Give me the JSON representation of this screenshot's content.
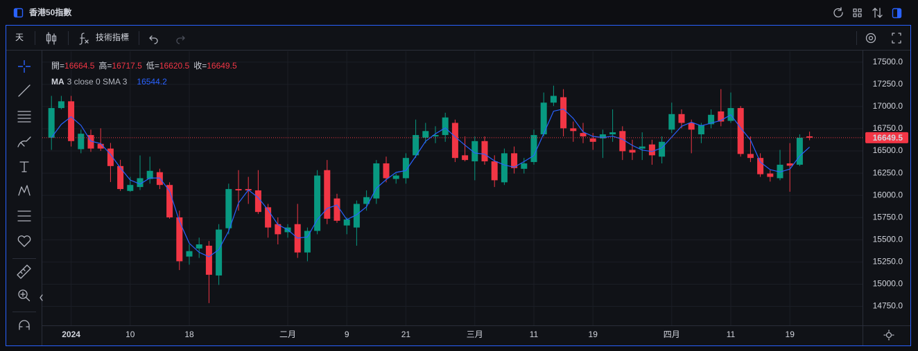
{
  "header": {
    "title": "香港50指數"
  },
  "toolbar": {
    "interval": "天",
    "indicators": "技術指標"
  },
  "chart_data": {
    "type": "candlestick",
    "categories": [
      null,
      null,
      "2024",
      null,
      null,
      null,
      null,
      null,
      "10",
      null,
      null,
      null,
      null,
      null,
      "18",
      null,
      null,
      null,
      null,
      null,
      null,
      null,
      null,
      null,
      "二月",
      null,
      null,
      null,
      null,
      null,
      "9",
      null,
      null,
      null,
      null,
      null,
      "21",
      null,
      null,
      null,
      null,
      null,
      null,
      "三月",
      null,
      null,
      null,
      null,
      null,
      "11",
      null,
      null,
      null,
      null,
      null,
      "19",
      null,
      null,
      null,
      null,
      null,
      null,
      null,
      "四月",
      null,
      null,
      null,
      null,
      null,
      "11",
      null,
      null,
      null,
      null,
      null,
      "19",
      null,
      null
    ],
    "open": [
      16649,
      16983,
      17059,
      16520,
      16679,
      16580,
      16527,
      16330,
      16050,
      16094,
      16185,
      16261,
      16117,
      15752,
      15311,
      15402,
      15433,
      15098,
      15630,
      16071,
      16071,
      16056,
      15866,
      15676,
      15585,
      15676,
      15357,
      15600,
      16284,
      15965,
      15661,
      15638,
      15904,
      15965,
      16360,
      16185,
      16193,
      16451,
      16649,
      16664,
      16679,
      16816,
      16451,
      16383,
      16611,
      16383,
      16147,
      16474,
      16299,
      16375,
      16687,
      17044,
      17105,
      16755,
      16702,
      16641,
      16641,
      16687,
      16724,
      16512,
      16527,
      16573,
      16436,
      16740,
      16915,
      16816,
      16687,
      16801,
      16945,
      16839,
      16983,
      16466,
      16421,
      16246,
      16193,
      16360,
      16345,
      16664.5
    ],
    "high": [
      17120,
      17120,
      17120,
      16740,
      16740,
      16755,
      16590,
      16400,
      16208,
      16450,
      16436,
      16300,
      16147,
      15828,
      15448,
      15524,
      15486,
      15676,
      16132,
      16284,
      16208,
      16284,
      15904,
      15752,
      15676,
      15904,
      15638,
      16284,
      16398,
      16018,
      15752,
      15942,
      16056,
      16398,
      16436,
      16246,
      16474,
      16853,
      16816,
      16778,
      16930,
      16853,
      16664,
      16664,
      16664,
      16451,
      16527,
      16550,
      16421,
      16740,
      17158,
      17235,
      17196,
      16831,
      16816,
      16702,
      16740,
      16968,
      16778,
      16626,
      16710,
      16626,
      16664,
      17044,
      16968,
      16853,
      16816,
      16968,
      17196,
      17158,
      17006,
      16664,
      16474,
      16284,
      16512,
      16588,
      16687,
      16717.5
    ],
    "low": [
      16512,
      16969,
      16550,
      16474,
      16490,
      16500,
      16150,
      16050,
      16040,
      16060,
      16132,
      16071,
      15737,
      15159,
      15220,
      15296,
      14787,
      14992,
      15562,
      15828,
      15904,
      15790,
      15524,
      15448,
      15524,
      15296,
      15258,
      15562,
      15676,
      15691,
      15562,
      15433,
      15828,
      15904,
      16147,
      16132,
      16132,
      16421,
      16588,
      16588,
      16603,
      16375,
      16383,
      16170,
      16345,
      16094,
      16117,
      16246,
      16246,
      16345,
      16664,
      17006,
      16664,
      16603,
      16588,
      16512,
      16421,
      16603,
      16398,
      16398,
      16398,
      16345,
      16360,
      16702,
      16755,
      16474,
      16588,
      16755,
      16778,
      16816,
      16436,
      16375,
      16208,
      16155,
      16170,
      16041,
      16330,
      16620.5
    ],
    "close": [
      16983,
      17059,
      16611,
      16694,
      16527,
      16527,
      16330,
      16071,
      16117,
      16193,
      16276,
      16117,
      15752,
      15258,
      15372,
      15448,
      15106,
      15615,
      16071,
      16056,
      16056,
      15813,
      15638,
      15562,
      15638,
      15357,
      15600,
      16223,
      15737,
      15714,
      15729,
      15904,
      15980,
      16360,
      16193,
      16223,
      16421,
      16679,
      16724,
      16679,
      16877,
      16421,
      16398,
      16611,
      16383,
      16170,
      16474,
      16307,
      16360,
      16679,
      17044,
      17120,
      16755,
      16724,
      16664,
      16603,
      16687,
      16710,
      16497,
      16482,
      16550,
      16451,
      16603,
      16915,
      16816,
      16740,
      16793,
      16907,
      16831,
      16983,
      16466,
      16421,
      16238,
      16208,
      16345,
      16334,
      16649,
      16649.5
    ],
    "up_color": "#089981",
    "down_color": "#f23645",
    "legend_labels": [
      "開=",
      "高=",
      "低=",
      "收="
    ],
    "ma": {
      "name": "MA",
      "params": "3 close 0 SMA 3",
      "color": "#2962ff",
      "values": [
        16650,
        16800,
        16884.3,
        16788,
        16610.7,
        16582.7,
        16461.3,
        16309.3,
        16172.7,
        16127,
        16195.3,
        16195.3,
        16048.3,
        15709,
        15460.7,
        15359.3,
        15308.7,
        15389.7,
        15597.3,
        15914,
        16061,
        15975,
        15835.7,
        15671,
        15612.7,
        15519,
        15531.7,
        15726.7,
        15853.3,
        15891.3,
        15726.7,
        15782.3,
        15871,
        16081.3,
        16177.7,
        16258.7,
        16279,
        16441,
        16608,
        16694,
        16760,
        16659,
        16565.3,
        16476.7,
        16464,
        16388,
        16342.3,
        16317,
        16380.3,
        16448.7,
        16694.3,
        16947.7,
        16973,
        16866.3,
        16714.3,
        16663.7,
        16651.3,
        16666.7,
        16631.3,
        16563,
        16509.7,
        16494.3,
        16534.7,
        16656.3,
        16778,
        16823.7,
        16783,
        16813.3,
        16843.7,
        16907,
        16760,
        16623.3,
        16375,
        16289,
        16263.7,
        16295.7,
        16442.7,
        16544.2
      ]
    },
    "ylim": [
      14536,
      17576
    ],
    "yticks": [
      {
        "value": 17500,
        "label": "17500.0"
      },
      {
        "value": 17250,
        "label": "17250.0"
      },
      {
        "value": 17000,
        "label": "17000.0"
      },
      {
        "value": 16750,
        "label": "16750.0"
      },
      {
        "value": 16500,
        "label": "16500.0"
      },
      {
        "value": 16250,
        "label": "16250.0"
      },
      {
        "value": 16000,
        "label": "16000.0"
      },
      {
        "value": 15750,
        "label": "15750.0"
      },
      {
        "value": 15500,
        "label": "15500.0"
      },
      {
        "value": 15250,
        "label": "15250.0"
      },
      {
        "value": 15000,
        "label": "15000.0"
      },
      {
        "value": 14750,
        "label": "14750.0"
      }
    ],
    "grid": true
  }
}
